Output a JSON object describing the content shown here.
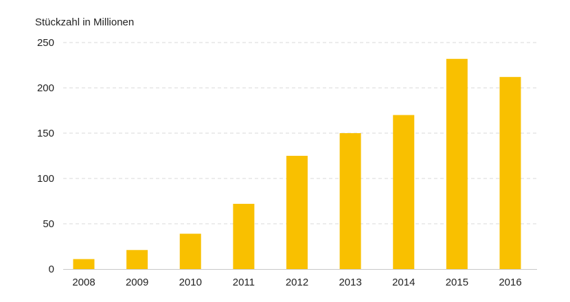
{
  "chart_data": {
    "type": "bar",
    "ylabel": "Stückzahl in Millionen",
    "xlabel": "",
    "categories": [
      "2008",
      "2009",
      "2010",
      "2011",
      "2012",
      "2013",
      "2014",
      "2015",
      "2016"
    ],
    "values": [
      11,
      21,
      39,
      72,
      125,
      150,
      170,
      232,
      212
    ],
    "ylim": [
      0,
      250
    ],
    "yticks": [
      0,
      50,
      100,
      150,
      200,
      250
    ],
    "grid": true,
    "legend": "none",
    "colors": {
      "bar": "#F9C000",
      "grid": "#d9d9d9",
      "axis": "#c8c8c8",
      "text": "#222222"
    }
  }
}
